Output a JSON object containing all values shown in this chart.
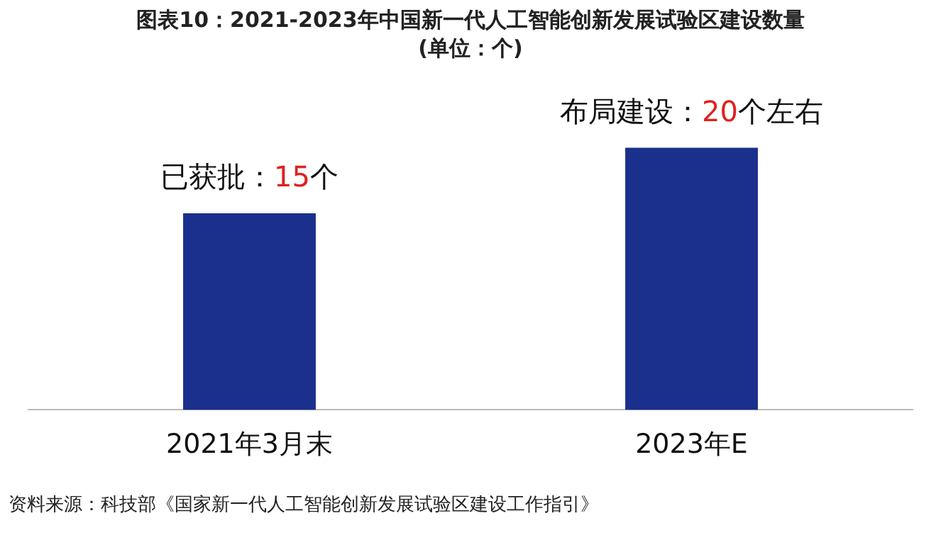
{
  "chart_data": {
    "type": "bar",
    "title": "图表10：2021-2023年中国新一代人工智能创新发展试验区建设数量",
    "subtitle": "(单位：个)",
    "categories": [
      "2021年3月末",
      "2023年E"
    ],
    "values": [
      15,
      20
    ],
    "color": "#1b2f8c",
    "value_labels": [
      "已获批：15个",
      "布局建设：20个左右"
    ],
    "grid": false,
    "legend": false,
    "tick_labels": "x",
    "annotations": [
      "资料来源：科技部《国家新一代人工智能创新发展试验区建设工作指引》"
    ]
  }
}
